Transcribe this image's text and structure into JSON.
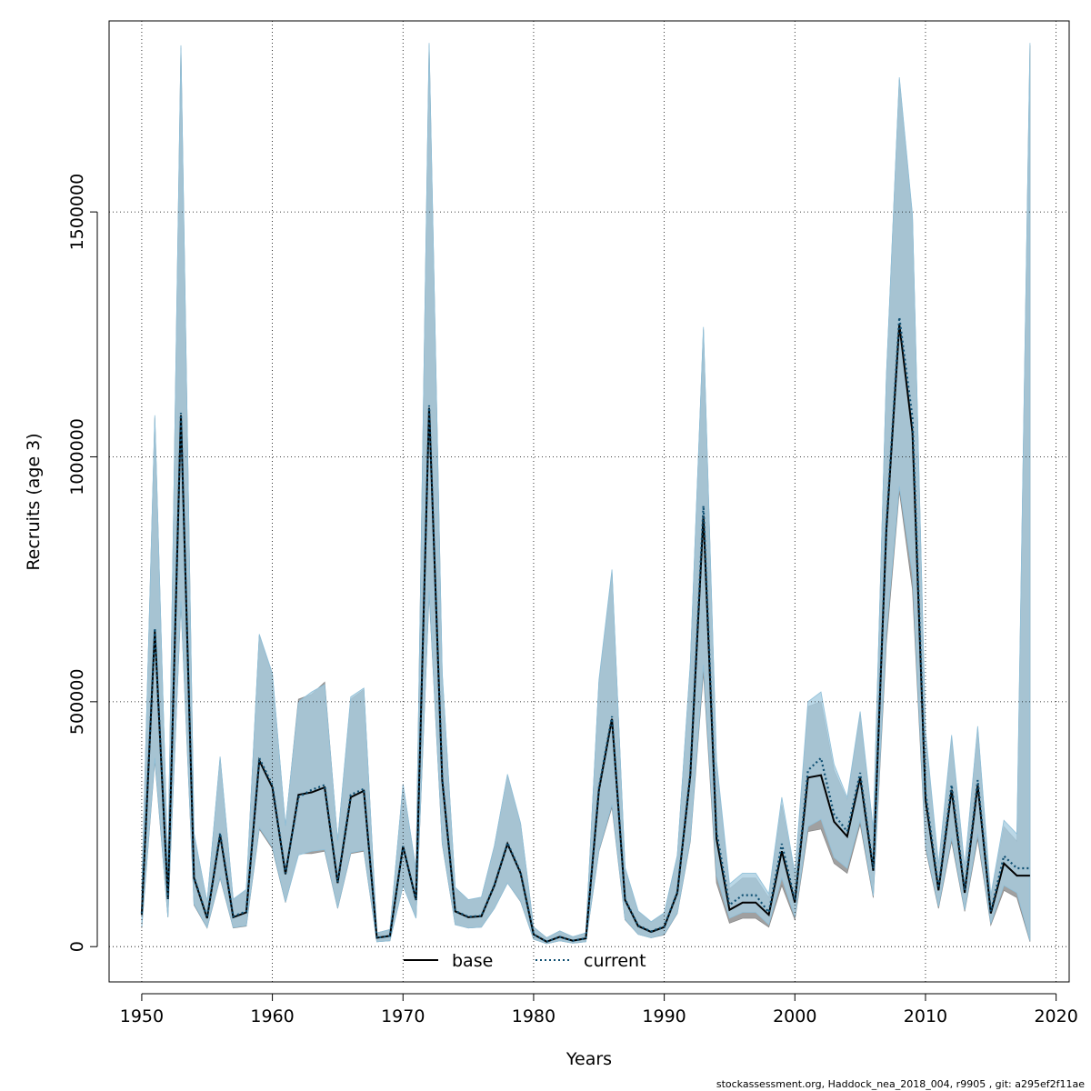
{
  "chart_data": {
    "type": "line",
    "title": "",
    "xlabel": "Years",
    "ylabel": "Recruits (age 3)",
    "xlim": [
      1947.5,
      2021
    ],
    "ylim": [
      -72000,
      1890000
    ],
    "xticks": [
      1950,
      1960,
      1970,
      1980,
      1990,
      2000,
      2010,
      2020
    ],
    "xtick_labels": [
      "1950",
      "1960",
      "1970",
      "1980",
      "1990",
      "2000",
      "2010",
      "2020"
    ],
    "yticks": [
      0,
      500000,
      1000000,
      1500000
    ],
    "ytick_labels": [
      "0",
      "500000",
      "1000000",
      "1500000"
    ],
    "grid": true,
    "legend_position": "bottom-center",
    "footer": "stockassessment.org, Haddock_nea_2018_004, r9905 , git: a295ef2f11ae",
    "colors": {
      "base_band": "#a0a0a0",
      "current_band": "#a8cde0",
      "overlap": "#9fc2d4",
      "base_line": "#000000",
      "current_line": "#0f4f72"
    },
    "x": [
      1950,
      1951,
      1952,
      1953,
      1954,
      1955,
      1956,
      1957,
      1958,
      1959,
      1960,
      1961,
      1962,
      1963,
      1964,
      1965,
      1966,
      1967,
      1968,
      1969,
      1970,
      1971,
      1972,
      1973,
      1974,
      1975,
      1976,
      1977,
      1978,
      1979,
      1980,
      1981,
      1982,
      1983,
      1984,
      1985,
      1986,
      1987,
      1988,
      1989,
      1990,
      1991,
      1992,
      1993,
      1994,
      1995,
      1996,
      1997,
      1998,
      1999,
      2000,
      2001,
      2002,
      2003,
      2004,
      2005,
      2006,
      2007,
      2008,
      2009,
      2010,
      2011,
      2012,
      2013,
      2014,
      2015,
      2016,
      2017,
      2018
    ],
    "series": [
      {
        "name": "base",
        "style": "solid",
        "values": [
          65000,
          645000,
          97000,
          1085000,
          140000,
          58000,
          228000,
          60000,
          70000,
          380000,
          325000,
          148000,
          310000,
          315000,
          325000,
          130000,
          305000,
          318000,
          18000,
          22000,
          205000,
          95000,
          1100000,
          340000,
          72000,
          60000,
          62000,
          125000,
          210000,
          150000,
          25000,
          10000,
          20000,
          12000,
          17000,
          320000,
          465000,
          95000,
          42000,
          30000,
          40000,
          110000,
          350000,
          880000,
          220000,
          75000,
          90000,
          90000,
          65000,
          195000,
          90000,
          345000,
          350000,
          255000,
          225000,
          345000,
          155000,
          850000,
          1270000,
          1050000,
          300000,
          115000,
          320000,
          110000,
          330000,
          68000,
          170000,
          145000,
          145000
        ],
        "lower": [
          38000,
          380000,
          60000,
          700000,
          85000,
          38000,
          140000,
          38000,
          42000,
          240000,
          200000,
          90000,
          190000,
          190000,
          195000,
          78000,
          190000,
          195000,
          10000,
          12000,
          125000,
          58000,
          720000,
          210000,
          45000,
          38000,
          40000,
          78000,
          130000,
          92000,
          15000,
          6000,
          12000,
          7000,
          10000,
          195000,
          285000,
          55000,
          25000,
          18000,
          24000,
          68000,
          215000,
          560000,
          130000,
          48000,
          58000,
          58000,
          40000,
          125000,
          55000,
          235000,
          240000,
          170000,
          150000,
          250000,
          100000,
          620000,
          930000,
          730000,
          200000,
          78000,
          215000,
          72000,
          220000,
          44000,
          115000,
          100000,
          10000
        ],
        "upper": [
          110000,
          1080000,
          155000,
          1835000,
          230000,
          90000,
          385000,
          95000,
          115000,
          635000,
          555000,
          245000,
          505000,
          515000,
          540000,
          215000,
          505000,
          525000,
          28000,
          35000,
          330000,
          155000,
          1840000,
          555000,
          120000,
          95000,
          100000,
          205000,
          350000,
          250000,
          40000,
          18000,
          32000,
          20000,
          28000,
          540000,
          765000,
          160000,
          72000,
          50000,
          68000,
          185000,
          575000,
          1260000,
          370000,
          118000,
          140000,
          140000,
          100000,
          290000,
          145000,
          490000,
          500000,
          360000,
          300000,
          475000,
          235000,
          1160000,
          1770000,
          1490000,
          430000,
          165000,
          425000,
          160000,
          445000,
          100000,
          245000,
          215000,
          1840000
        ]
      },
      {
        "name": "current",
        "style": "dotted",
        "values": [
          68000,
          650000,
          98000,
          1090000,
          142000,
          60000,
          232000,
          62000,
          72000,
          385000,
          330000,
          150000,
          305000,
          320000,
          330000,
          132000,
          310000,
          322000,
          18000,
          22000,
          205000,
          96000,
          1105000,
          345000,
          73000,
          61000,
          63000,
          126000,
          212000,
          152000,
          25000,
          10000,
          20000,
          12000,
          17000,
          325000,
          470000,
          97000,
          43000,
          31000,
          41000,
          112000,
          355000,
          900000,
          235000,
          85000,
          105000,
          105000,
          70000,
          210000,
          95000,
          360000,
          385000,
          270000,
          235000,
          355000,
          160000,
          860000,
          1285000,
          1080000,
          315000,
          120000,
          330000,
          115000,
          340000,
          72000,
          185000,
          160000,
          160000
        ],
        "lower": [
          40000,
          385000,
          60000,
          705000,
          87000,
          39000,
          142000,
          39000,
          43000,
          243000,
          203000,
          91000,
          187000,
          195000,
          198000,
          79000,
          192000,
          197000,
          10000,
          12000,
          124000,
          58000,
          725000,
          212000,
          45000,
          38000,
          40000,
          78000,
          130000,
          93000,
          15000,
          6000,
          12000,
          7000,
          10000,
          197000,
          290000,
          56000,
          25000,
          18000,
          25000,
          69000,
          218000,
          575000,
          145000,
          58000,
          70000,
          70000,
          45000,
          140000,
          60000,
          245000,
          260000,
          182000,
          160000,
          258000,
          104000,
          640000,
          940000,
          760000,
          205000,
          82000,
          222000,
          75000,
          230000,
          47000,
          125000,
          110000,
          12000
        ],
        "upper": [
          112000,
          1085000,
          157000,
          1840000,
          232000,
          91000,
          388000,
          97000,
          117000,
          638000,
          558000,
          247000,
          500000,
          520000,
          535000,
          217000,
          510000,
          528000,
          28000,
          35000,
          332000,
          157000,
          1845000,
          560000,
          121000,
          96000,
          101000,
          206000,
          352000,
          252000,
          40000,
          18000,
          32000,
          20000,
          28000,
          545000,
          770000,
          162000,
          73000,
          51000,
          69000,
          187000,
          580000,
          1265000,
          380000,
          128000,
          150000,
          150000,
          108000,
          305000,
          150000,
          500000,
          520000,
          372000,
          305000,
          480000,
          240000,
          1165000,
          1775000,
          1495000,
          440000,
          168000,
          432000,
          163000,
          450000,
          105000,
          258000,
          230000,
          1845000
        ]
      }
    ]
  }
}
